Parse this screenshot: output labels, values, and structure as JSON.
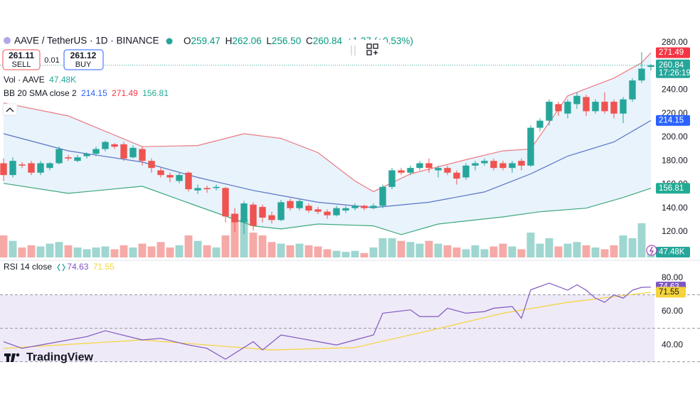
{
  "header": {
    "symbol": "AAVE / TetherUS · 1D · BINANCE",
    "ohlc": [
      {
        "key": "O",
        "value": "259.47"
      },
      {
        "key": "H",
        "value": "262.06"
      },
      {
        "key": "L",
        "value": "256.50"
      },
      {
        "key": "C",
        "value": "260.84"
      }
    ],
    "change": "+1.37 (+0.53%)"
  },
  "trade": {
    "sell_price": "261.11",
    "sell": "SELL",
    "spread": "0.01",
    "buy_price": "261.12",
    "buy": "BUY"
  },
  "branding": "TradingView",
  "chart_data": [
    {
      "type": "candlestick",
      "xlim": [
        -0.385,
        70.385
      ],
      "ylim": [
        96.5,
        289
      ],
      "yticks": [
        {
          "value": 280,
          "label": "280.00"
        },
        {
          "value": 260,
          "label": "260.00"
        },
        {
          "value": 240,
          "label": "240.00"
        },
        {
          "value": 220,
          "label": "220.00"
        },
        {
          "value": 200,
          "label": "200.00"
        },
        {
          "value": 180,
          "label": "180.00"
        },
        {
          "value": 160,
          "label": "160.00"
        },
        {
          "value": 140,
          "label": "140.00"
        },
        {
          "value": 120,
          "label": "120.00"
        }
      ],
      "grid": false,
      "up_color": "#26a69a",
      "down_color": "#ef5350",
      "open": [
        178,
        168,
        177,
        178,
        170,
        174,
        178,
        183,
        180,
        184,
        186,
        190,
        194,
        194,
        183,
        190,
        180,
        172,
        168,
        163,
        170,
        155,
        157,
        157,
        157,
        135,
        128,
        143,
        141,
        134,
        130,
        146,
        140,
        142,
        139,
        137,
        134,
        138,
        140,
        142,
        140,
        142,
        158,
        172,
        170,
        174,
        178,
        172,
        174,
        170,
        166,
        176,
        178,
        180,
        178,
        174,
        180,
        176,
        208,
        214,
        228,
        220,
        228,
        234,
        222,
        230,
        230,
        220,
        232,
        248,
        259.47
      ],
      "high": [
        182,
        183,
        179,
        180,
        180,
        179,
        192,
        185,
        185,
        187,
        192,
        197,
        195,
        196,
        193,
        192,
        182,
        174,
        170,
        170,
        171,
        160,
        159,
        160,
        158,
        140,
        146,
        145,
        143,
        137,
        147,
        148,
        148,
        144,
        141,
        139,
        142,
        142,
        144,
        143,
        144,
        160,
        174,
        174,
        176,
        180,
        182,
        176,
        176,
        172,
        178,
        180,
        182,
        182,
        180,
        180,
        182,
        210,
        216,
        232,
        230,
        232,
        238,
        236,
        232,
        238,
        232,
        234,
        250,
        272,
        262.06
      ],
      "low": [
        163,
        166,
        174,
        168,
        168,
        172,
        177,
        180,
        179,
        182,
        184,
        188,
        190,
        180,
        182,
        176,
        170,
        166,
        162,
        161,
        154,
        152,
        153,
        155,
        128,
        120,
        118,
        121,
        128,
        127,
        129,
        138,
        138,
        136,
        135,
        131,
        133,
        136,
        138,
        138,
        139,
        140,
        156,
        168,
        168,
        172,
        170,
        166,
        168,
        160,
        164,
        172,
        176,
        172,
        172,
        170,
        172,
        175,
        205,
        210,
        218,
        216,
        224,
        218,
        220,
        220,
        216,
        212,
        230,
        246,
        256.5
      ],
      "close": [
        168,
        180,
        176,
        170,
        178,
        178,
        190,
        182,
        183,
        186,
        190,
        196,
        192,
        182,
        191,
        180,
        174,
        168,
        166,
        168,
        156,
        157,
        156,
        158,
        133,
        128,
        144,
        125,
        132,
        130,
        145,
        140,
        146,
        138,
        137,
        134,
        140,
        140,
        142,
        140,
        142,
        158,
        172,
        170,
        174,
        178,
        174,
        174,
        170,
        165,
        176,
        178,
        180,
        174,
        174,
        178,
        176,
        208,
        214,
        230,
        222,
        230,
        235,
        222,
        230,
        222,
        220,
        232,
        248,
        258,
        260.84
      ],
      "countdown": "17:26:19",
      "volume": {
        "name": "Vol · AAVE",
        "color_up": "#9fd6d0",
        "color_down": "#f5aaa8",
        "values": [
          190,
          143,
          86,
          105,
          95,
          119,
          133,
          105,
          86,
          71,
          86,
          95,
          71,
          105,
          86,
          119,
          95,
          133,
          86,
          105,
          190,
          143,
          105,
          86,
          190,
          380,
          333,
          214,
          190,
          133,
          119,
          105,
          119,
          105,
          95,
          71,
          57,
          48,
          57,
          38,
          86,
          166,
          166,
          143,
          133,
          119,
          143,
          119,
          105,
          86,
          71,
          105,
          71,
          95,
          119,
          95,
          71,
          214,
          119,
          166,
          95,
          119,
          133,
          105,
          86,
          71,
          105,
          190,
          166,
          295,
          47.48
        ],
        "value_label": "47.48K"
      },
      "bands": {
        "name": "BB 20 SMA close 2",
        "fill": "#e8f3fc",
        "series": [
          {
            "color": "#5b74c4",
            "tag_color": "#2962ff",
            "x": [
              0,
              7,
              15,
              21,
              27,
              34,
              40,
              46,
              52,
              57,
              61,
              66,
              70
            ],
            "values": [
              203,
              188.5,
              179,
              166,
              155,
              145,
              140.5,
              145,
              153.7,
              169,
              184,
              196,
              214.15
            ]
          },
          {
            "color": "#ec7a80",
            "tag_color": "#f23645",
            "x": [
              0,
              7,
              15,
              21,
              26,
              30,
              34,
              38,
              40,
              44,
              50,
              54,
              57,
              61,
              66,
              69,
              70
            ],
            "values": [
              229,
              218,
              192,
              193,
              203,
              199,
              187,
              163,
              154,
              169,
              181,
              188.5,
              190,
              235,
              250,
              263,
              271.49
            ]
          },
          {
            "color": "#3fa77c",
            "tag_color": "#22ab94",
            "x": [
              0,
              7,
              15,
              21,
              27,
              30,
              34,
              40,
              43,
              47,
              54,
              58,
              63,
              67,
              70
            ],
            "values": [
              161,
              152.5,
              158.5,
              141.6,
              125,
              122.4,
              126.6,
              125,
              117.6,
              126.6,
              132.6,
              137,
              140,
              149,
              156.81
            ]
          }
        ]
      }
    },
    {
      "type": "line",
      "title": "RSI 14 close",
      "xlim": [
        -0.385,
        70.385
      ],
      "ylim": [
        29.4,
        89.8
      ],
      "yticks": [
        {
          "value": 80,
          "label": "80.00"
        },
        {
          "value": 60,
          "label": "60.00"
        },
        {
          "value": 40,
          "label": "40.00"
        }
      ],
      "levels": [
        30,
        50,
        70
      ],
      "band_color": "#efeaf7",
      "series": [
        {
          "color": "#7e57c2",
          "x": [
            0,
            2,
            4,
            9,
            11,
            15,
            17,
            20,
            22,
            24,
            25,
            27,
            28,
            30,
            32,
            34,
            36,
            38,
            40,
            41,
            44,
            45,
            47,
            48,
            50,
            52,
            53,
            55,
            56,
            57,
            58,
            59,
            61,
            62,
            63,
            64,
            65,
            66,
            67,
            68,
            69,
            70
          ],
          "values": [
            42,
            38,
            40,
            45,
            48.5,
            43,
            44,
            40,
            38,
            31.5,
            35,
            42,
            37,
            46,
            44,
            42,
            40,
            43,
            46,
            59,
            61,
            57,
            57,
            62,
            59,
            60,
            62,
            63,
            56,
            73,
            75,
            77,
            72.8,
            76,
            72.8,
            68,
            65.5,
            70,
            68,
            72.8,
            74.5,
            74.63
          ]
        },
        {
          "color": "#f5d43a",
          "x": [
            0,
            15,
            29,
            38,
            46,
            54,
            61,
            70
          ],
          "values": [
            38,
            43,
            37,
            38.5,
            48.5,
            59,
            65.5,
            71.55
          ]
        }
      ]
    }
  ]
}
